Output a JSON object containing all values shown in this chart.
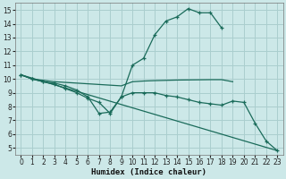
{
  "xlabel": "Humidex (Indice chaleur)",
  "bg_color": "#cce8e8",
  "line_color": "#1a6b5a",
  "grid_color": "#aacece",
  "xlim": [
    -0.5,
    23.5
  ],
  "ylim": [
    4.5,
    15.5
  ],
  "xticks": [
    0,
    1,
    2,
    3,
    4,
    5,
    6,
    7,
    8,
    9,
    10,
    11,
    12,
    13,
    14,
    15,
    16,
    17,
    18,
    19,
    20,
    21,
    22,
    23
  ],
  "yticks": [
    5,
    6,
    7,
    8,
    9,
    10,
    11,
    12,
    13,
    14,
    15
  ],
  "lines": [
    {
      "x": [
        0,
        1,
        2,
        3,
        4,
        5,
        6,
        7,
        8,
        9,
        10,
        11,
        12,
        13,
        14,
        15,
        16,
        17,
        18
      ],
      "y": [
        10.3,
        10.0,
        9.8,
        9.7,
        9.5,
        9.2,
        8.7,
        7.5,
        7.6,
        8.7,
        11.0,
        11.5,
        13.2,
        14.2,
        14.5,
        15.1,
        14.8,
        14.8,
        13.7
      ],
      "marker": true
    },
    {
      "x": [
        0,
        1,
        2,
        3,
        4,
        5,
        6,
        7,
        8,
        9,
        10,
        11,
        12,
        13,
        14,
        15,
        16,
        17,
        18,
        19
      ],
      "y": [
        10.3,
        10.0,
        9.9,
        9.8,
        9.75,
        9.7,
        9.65,
        9.6,
        9.55,
        9.5,
        9.8,
        9.85,
        9.88,
        9.9,
        9.92,
        9.93,
        9.94,
        9.95,
        9.95,
        9.8
      ],
      "marker": false
    },
    {
      "x": [
        0,
        1,
        2,
        3,
        4,
        5,
        6,
        7,
        8,
        9,
        10,
        11,
        12,
        13,
        14,
        15,
        16,
        17,
        18,
        19,
        20,
        21,
        22,
        23
      ],
      "y": [
        10.3,
        10.0,
        9.8,
        9.6,
        9.3,
        9.0,
        8.6,
        8.3,
        7.5,
        8.7,
        9.0,
        9.0,
        9.0,
        8.8,
        8.7,
        8.5,
        8.3,
        8.2,
        8.1,
        8.4,
        8.3,
        6.8,
        5.5,
        4.8
      ],
      "marker": true
    },
    {
      "x": [
        0,
        23
      ],
      "y": [
        10.3,
        4.8
      ],
      "marker": false
    }
  ]
}
